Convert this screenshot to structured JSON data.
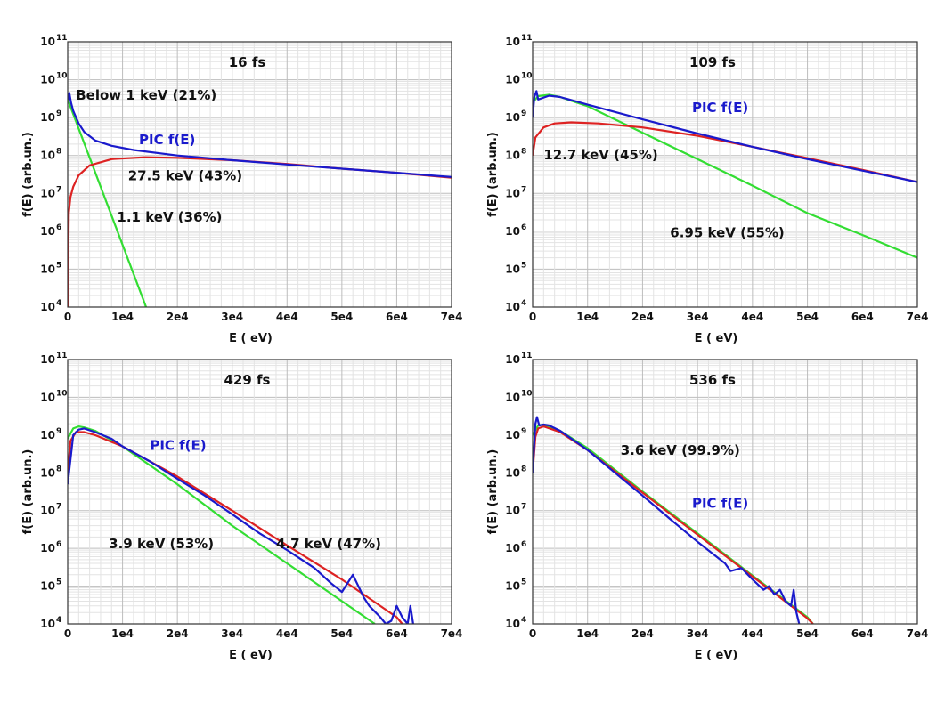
{
  "chart_data": [
    {
      "type": "line",
      "title": "16 fs",
      "xlabel": "E ( eV)",
      "ylabel": "f(E) (arb.un.)",
      "xlim": [
        0,
        70000
      ],
      "ylim": [
        10000,
        100000000000
      ],
      "yscale": "log",
      "x_ticks": [
        "0",
        "1e4",
        "2e4",
        "3e4",
        "4e4",
        "5e4",
        "6e4",
        "7e4"
      ],
      "y_ticks": [
        4,
        5,
        6,
        7,
        8,
        9,
        10,
        11
      ],
      "grid": true,
      "series": [
        {
          "name": "PIC  f(E)",
          "color": "#1a1acc",
          "x": [
            0,
            300,
            600,
            1000,
            2000,
            3000,
            5000,
            8000,
            12000,
            20000,
            30000,
            40000,
            50000,
            60000,
            70000
          ],
          "y": [
            3000000000,
            4500000000,
            2500000000,
            1500000000,
            700000000,
            420000000,
            250000000,
            180000000,
            140000000,
            100000000,
            75000000,
            58000000,
            45000000,
            35000000,
            27000000
          ]
        },
        {
          "name": "",
          "color": "#dd2222",
          "x": [
            0,
            200,
            500,
            1000,
            2000,
            4000,
            8000,
            14000,
            20000,
            30000,
            40000,
            50000,
            60000,
            70000
          ],
          "y": [
            10000,
            3000000,
            8000000,
            15000000,
            30000000,
            55000000,
            80000000,
            90000000,
            87000000,
            75000000,
            60000000,
            45000000,
            35000000,
            26000000
          ]
        },
        {
          "name": "",
          "color": "#33dd33",
          "x": [
            0,
            14300
          ],
          "y": [
            3000000000,
            10000
          ]
        }
      ],
      "annotations": [
        {
          "text": "Below 1 keV (21%)",
          "x": 1500,
          "y": 3000000000
        },
        {
          "text": "PIC  f(E)",
          "x": 13000,
          "y": 200000000,
          "color": "#1a1acc"
        },
        {
          "text": "27.5 keV (43%)",
          "x": 11000,
          "y": 22000000
        },
        {
          "text": "1.1 keV (36%)",
          "x": 9000,
          "y": 1800000
        }
      ]
    },
    {
      "type": "line",
      "title": "109 fs",
      "xlabel": "E ( eV)",
      "ylabel": "f(E) (arb.un.)",
      "xlim": [
        0,
        70000
      ],
      "ylim": [
        10000,
        100000000000
      ],
      "yscale": "log",
      "x_ticks": [
        "0",
        "1e4",
        "2e4",
        "3e4",
        "4e4",
        "5e4",
        "6e4",
        "7e4"
      ],
      "y_ticks": [
        4,
        5,
        6,
        7,
        8,
        9,
        10,
        11
      ],
      "grid": true,
      "series": [
        {
          "name": "PIC  f(E)",
          "color": "#1a1acc",
          "x": [
            0,
            300,
            700,
            1000,
            3000,
            5000,
            10000,
            20000,
            30000,
            40000,
            50000,
            60000,
            70000
          ],
          "y": [
            1000000000,
            3500000000,
            5000000000,
            3000000000,
            3800000000,
            3500000000,
            2200000000,
            900000000,
            380000000,
            170000000,
            80000000,
            40000000,
            20000000
          ]
        },
        {
          "name": "",
          "color": "#dd2222",
          "x": [
            0,
            500,
            2000,
            4000,
            7000,
            12000,
            20000,
            30000,
            40000,
            50000,
            60000,
            70000
          ],
          "y": [
            100000000,
            300000000,
            550000000,
            700000000,
            750000000,
            700000000,
            550000000,
            330000000,
            170000000,
            85000000,
            42000000,
            20000000
          ]
        },
        {
          "name": "",
          "color": "#33dd33",
          "x": [
            0,
            1000,
            3000,
            5000,
            10000,
            20000,
            30000,
            40000,
            50000,
            60000,
            70000
          ],
          "y": [
            2500000000,
            3700000000,
            4000000000,
            3500000000,
            2000000000,
            400000000,
            80000000,
            16000000,
            3000000,
            800000,
            200000
          ]
        }
      ],
      "annotations": [
        {
          "text": "PIC  f(E)",
          "x": 29000,
          "y": 1400000000,
          "color": "#1a1acc"
        },
        {
          "text": "12.7 keV  (45%)",
          "x": 2000,
          "y": 80000000
        },
        {
          "text": "6.95 keV  (55%)",
          "x": 25000,
          "y": 700000
        }
      ]
    },
    {
      "type": "line",
      "title": "429 fs",
      "xlabel": "E ( eV)",
      "ylabel": "f(E) (arb.un.)",
      "xlim": [
        0,
        70000
      ],
      "ylim": [
        10000,
        100000000000
      ],
      "yscale": "log",
      "x_ticks": [
        "0",
        "1e4",
        "2e4",
        "3e4",
        "4e4",
        "5e4",
        "6e4",
        "7e4"
      ],
      "y_ticks": [
        4,
        5,
        6,
        7,
        8,
        9,
        10,
        11
      ],
      "grid": true,
      "series": [
        {
          "name": "PIC  f(E)",
          "color": "#1a1acc",
          "x": [
            0,
            1000,
            2000,
            3000,
            5000,
            8000,
            10000,
            15000,
            20000,
            25000,
            30000,
            35000,
            40000,
            45000,
            48000,
            50000,
            52000,
            54000,
            55000,
            57000,
            58000,
            59000,
            60000,
            61000,
            62000,
            62500,
            63000
          ],
          "y": [
            50000000,
            1000000000,
            1400000000,
            1500000000,
            1200000000,
            800000000,
            500000000,
            200000000,
            70000000,
            25000000,
            8000000,
            2500000,
            900000,
            300000,
            120000,
            70000,
            200000,
            50000,
            30000,
            15000,
            10000,
            12000,
            30000,
            15000,
            10000,
            30000,
            10000
          ]
        },
        {
          "name": "",
          "color": "#dd2222",
          "x": [
            0,
            500,
            1500,
            3000,
            5000,
            10000,
            20000,
            30000,
            40000,
            50000,
            60000,
            61000
          ],
          "y": [
            100000000,
            700000000,
            1200000000,
            1200000000,
            1000000000,
            500000000,
            80000000,
            10000000,
            1200000,
            150000,
            15000,
            10000
          ]
        },
        {
          "name": "",
          "color": "#33dd33",
          "x": [
            0,
            1000,
            2000,
            3000,
            5000,
            10000,
            20000,
            30000,
            40000,
            50000,
            56000
          ],
          "y": [
            800000000,
            1500000000,
            1700000000,
            1600000000,
            1300000000,
            500000000,
            50000000,
            4000000,
            400000,
            40000,
            10000
          ]
        }
      ],
      "annotations": [
        {
          "text": "PIC  f(E)",
          "x": 15000,
          "y": 400000000,
          "color": "#1a1acc"
        },
        {
          "text": "3.9 keV (53%)",
          "x": 7500,
          "y": 1000000
        },
        {
          "text": "4.7 keV (47%)",
          "x": 38000,
          "y": 1000000
        }
      ]
    },
    {
      "type": "line",
      "title": "536 fs",
      "xlabel": "E ( eV)",
      "ylabel": "f(E) (arb.un.)",
      "xlim": [
        0,
        70000
      ],
      "ylim": [
        10000,
        100000000000
      ],
      "yscale": "log",
      "x_ticks": [
        "0",
        "1e4",
        "2e4",
        "3e4",
        "4e4",
        "5e4",
        "6e4",
        "7e4"
      ],
      "y_ticks": [
        4,
        5,
        6,
        7,
        8,
        9,
        10,
        11
      ],
      "grid": true,
      "series": [
        {
          "name": "PIC  f(E)",
          "color": "#1a1acc",
          "x": [
            0,
            500,
            800,
            1200,
            2000,
            3000,
            5000,
            10000,
            15000,
            20000,
            25000,
            30000,
            35000,
            36000,
            38000,
            40000,
            42000,
            43000,
            44000,
            45000,
            46000,
            47000,
            47500,
            48000,
            48500
          ],
          "y": [
            100000000,
            2000000000,
            3000000000,
            1800000000,
            1900000000,
            1800000000,
            1300000000,
            400000000,
            100000000,
            25000000,
            6000000,
            1500000,
            400000,
            250000,
            300000,
            150000,
            80000,
            100000,
            60000,
            80000,
            40000,
            30000,
            80000,
            20000,
            10000
          ]
        },
        {
          "name": "",
          "color": "#dd2222",
          "x": [
            0,
            500,
            1000,
            2000,
            5000,
            10000,
            20000,
            30000,
            40000,
            50000,
            51000
          ],
          "y": [
            100000000,
            900000000,
            1500000000,
            1700000000,
            1200000000,
            400000000,
            30000000,
            2300000,
            180000,
            14000,
            10000
          ]
        },
        {
          "name": "",
          "color": "#33dd33",
          "x": [
            0,
            1000,
            2000,
            5000,
            10000,
            20000,
            30000,
            40000,
            50000,
            51000
          ],
          "y": [
            1000000000,
            1800000000,
            1900000000,
            1300000000,
            450000000,
            32000000,
            2500000,
            190000,
            15000,
            10000
          ]
        }
      ],
      "annotations": [
        {
          "text": "3.6 keV  (99.9%)",
          "x": 16000,
          "y": 300000000
        },
        {
          "text": "PIC  f(E)",
          "x": 29000,
          "y": 12000000,
          "color": "#1a1acc"
        }
      ]
    }
  ]
}
